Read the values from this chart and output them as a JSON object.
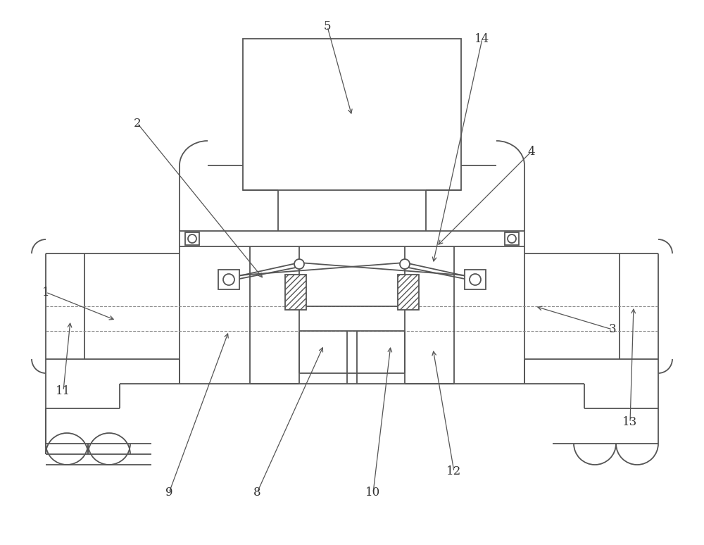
{
  "bg_color": "#ffffff",
  "lc": "#555555",
  "lw": 1.3,
  "lfs": 12,
  "lfc": "#333333"
}
